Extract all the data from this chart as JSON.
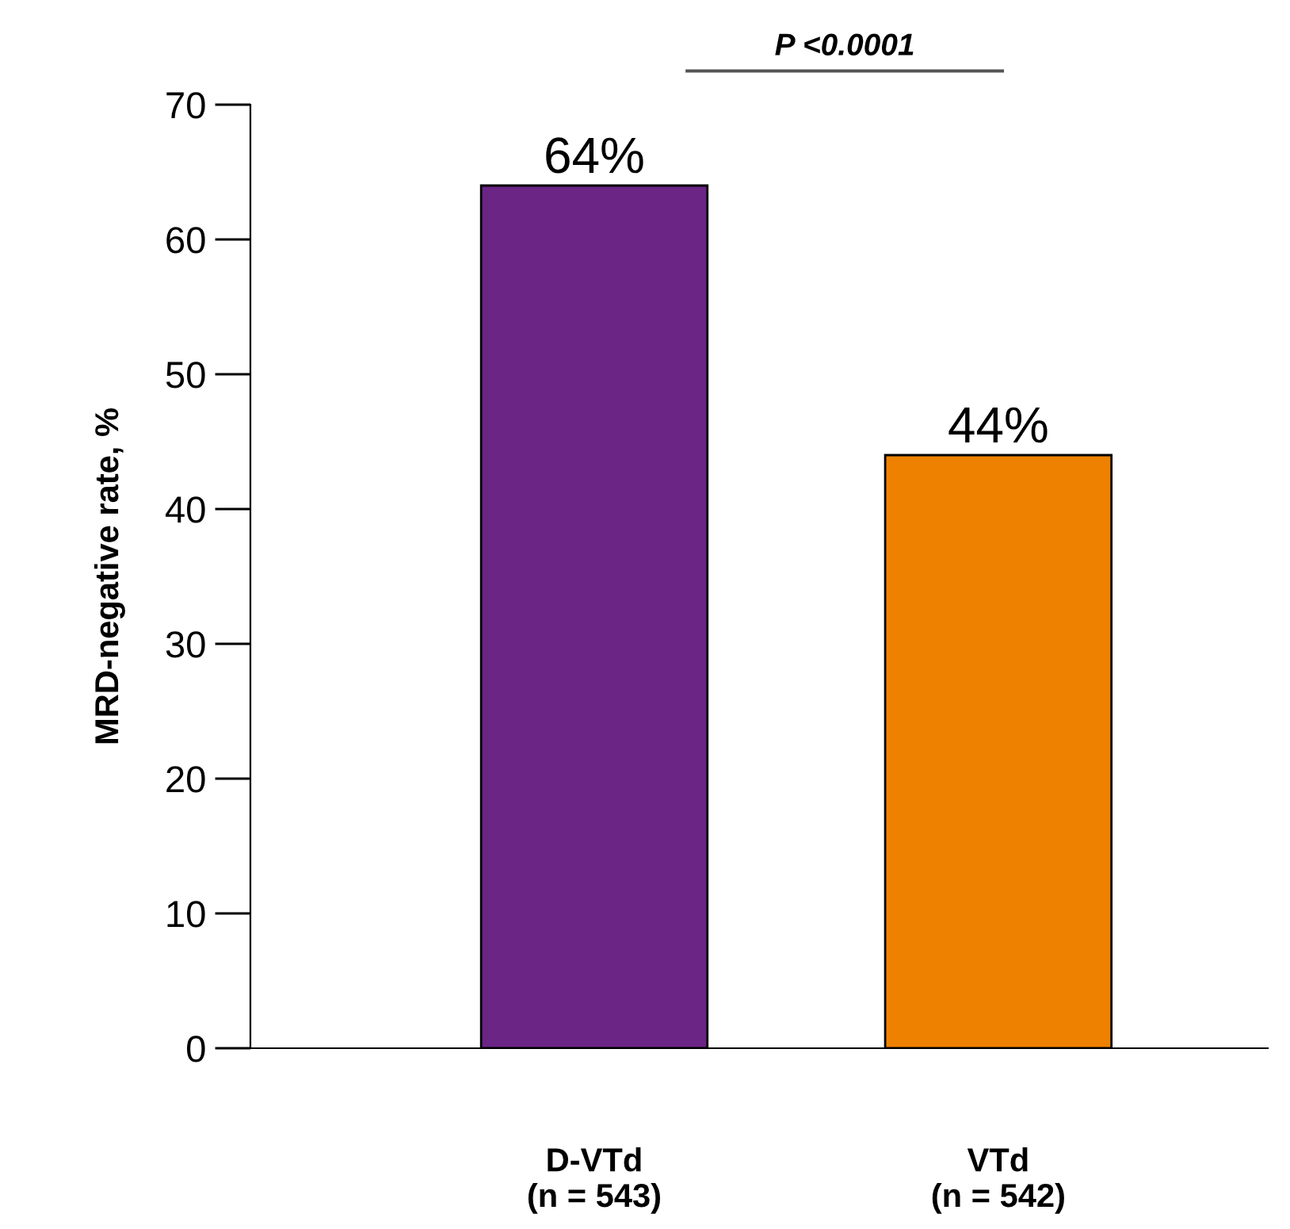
{
  "chart_data": {
    "type": "bar",
    "ylabel": "MRD-negative rate, %",
    "categories": [
      "D-VTd\n(n = 543)",
      "VTd\n(n = 542)"
    ],
    "values": [
      64,
      44
    ],
    "colors": [
      "#6b2585",
      "#ef8100"
    ],
    "value_labels": [
      "64%",
      "44%"
    ],
    "ylim": [
      0,
      70
    ],
    "yticks": [
      0,
      10,
      20,
      30,
      40,
      50,
      60,
      70
    ],
    "grid": false,
    "annotations": [
      "P <0.0001"
    ]
  }
}
